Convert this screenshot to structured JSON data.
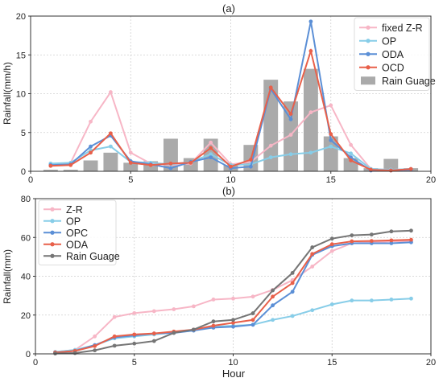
{
  "chart_data": [
    {
      "panel_label": "(a)",
      "type": "bar+line",
      "xlabel": "",
      "ylabel": "Rainfall(mm/h)",
      "xlim": [
        0,
        20
      ],
      "ylim": [
        0,
        20
      ],
      "xticks": [
        0,
        5,
        10,
        15,
        20
      ],
      "yticks": [
        0,
        5,
        10,
        15,
        20
      ],
      "grid": true,
      "legend_position": "top-right",
      "x": [
        1,
        2,
        3,
        4,
        5,
        6,
        7,
        8,
        9,
        10,
        11,
        12,
        13,
        14,
        15,
        16,
        17,
        18,
        19
      ],
      "bars": {
        "name": "Rain Guage",
        "color": "#aaaaaa",
        "values": [
          0.2,
          0.2,
          1.4,
          2.4,
          1.1,
          1.3,
          4.2,
          1.7,
          4.2,
          0.8,
          3.4,
          11.8,
          9.0,
          13.2,
          4.5,
          1.7,
          0.4,
          1.6,
          0.4
        ]
      },
      "series": [
        {
          "name": "fixed Z-R",
          "color": "#f7b6c6",
          "values": [
            0.9,
            1.1,
            6.4,
            10.2,
            2.4,
            1.0,
            0.8,
            1.0,
            3.7,
            0.9,
            1.2,
            3.3,
            4.7,
            7.6,
            8.5,
            3.4,
            0.3,
            0.2,
            0.3
          ]
        },
        {
          "name": "OP",
          "color": "#87cde8",
          "values": [
            1.0,
            1.1,
            2.7,
            3.2,
            1.2,
            1.1,
            0.9,
            1.2,
            2.2,
            0.8,
            0.9,
            1.8,
            2.2,
            2.4,
            3.2,
            2.3,
            0.3,
            0.2,
            0.3
          ]
        },
        {
          "name": "ODA",
          "color": "#5b8fd6",
          "values": [
            0.8,
            0.9,
            3.2,
            4.6,
            1.3,
            0.9,
            0.4,
            1.2,
            1.8,
            0.4,
            0.6,
            10.6,
            6.7,
            19.3,
            4.0,
            1.8,
            0.1,
            0.1,
            0.2
          ]
        },
        {
          "name": "OCD",
          "color": "#e8604a",
          "values": [
            0.7,
            0.8,
            2.4,
            4.9,
            1.1,
            0.8,
            1.0,
            1.1,
            3.0,
            0.6,
            1.5,
            10.8,
            7.4,
            15.5,
            4.8,
            1.4,
            0.2,
            0.1,
            0.3
          ]
        }
      ]
    },
    {
      "panel_label": "(b)",
      "type": "line",
      "xlabel": "Hour",
      "ylabel": "Rainfall(mm)",
      "xlim": [
        0,
        20
      ],
      "ylim": [
        0,
        80
      ],
      "xticks": [
        0,
        5,
        10,
        15,
        20
      ],
      "yticks": [
        0,
        20,
        40,
        60,
        80
      ],
      "grid": true,
      "legend_position": "top-left",
      "x": [
        1,
        2,
        3,
        4,
        5,
        6,
        7,
        8,
        9,
        10,
        11,
        12,
        13,
        14,
        15,
        16,
        17,
        18,
        19
      ],
      "series": [
        {
          "name": "Z-R",
          "color": "#f7b6c6",
          "values": [
            1,
            2,
            9,
            19,
            21,
            22,
            23,
            24.5,
            28,
            28.5,
            29.5,
            33,
            38,
            45,
            53,
            57,
            57.5,
            58,
            58
          ]
        },
        {
          "name": "OP",
          "color": "#87cde8",
          "values": [
            1,
            2,
            4.5,
            8,
            9,
            10,
            11,
            12,
            14,
            14.5,
            15,
            17.5,
            19.5,
            22.5,
            25.5,
            27.5,
            27.5,
            28,
            28.5
          ]
        },
        {
          "name": "OPC",
          "color": "#5b8fd6",
          "values": [
            0.7,
            1.5,
            4.5,
            8.5,
            9.5,
            10.5,
            10.8,
            12,
            13.5,
            14,
            15,
            25,
            32,
            51,
            55.5,
            57,
            57,
            57,
            57.5
          ]
        },
        {
          "name": "ODA",
          "color": "#e8604a",
          "values": [
            0.7,
            1.5,
            4,
            9,
            10,
            10.5,
            11.5,
            12.5,
            14.5,
            16,
            17.5,
            29.5,
            36.5,
            51.5,
            56.5,
            58,
            58.2,
            58.5,
            58.8
          ]
        },
        {
          "name": "Rain Guage",
          "color": "#757575",
          "values": [
            0.2,
            0.4,
            1.8,
            4.2,
            5.3,
            6.6,
            10.8,
            12.5,
            16.7,
            17.5,
            20.9,
            32.7,
            41.7,
            54.9,
            59.4,
            61.1,
            61.5,
            63.1,
            63.5
          ]
        }
      ]
    }
  ]
}
